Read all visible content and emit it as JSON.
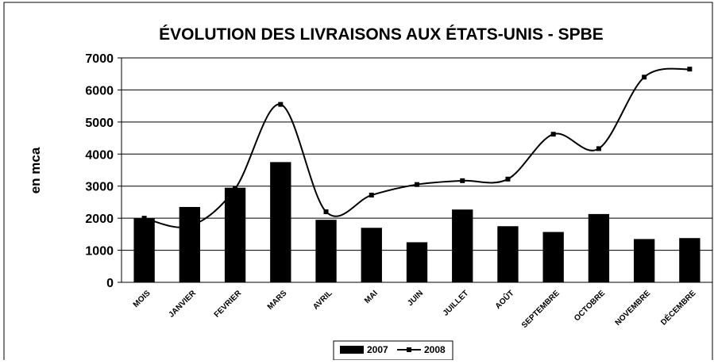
{
  "chart_data": {
    "type": "bar-line",
    "title": "ÉVOLUTION DES LIVRAISONS AUX ÉTATS-UNIS - SPBE",
    "y_label": "en mca",
    "categories": [
      "MOIS",
      "JANVIER",
      "FEVRIER",
      "MARS",
      "AVRIL",
      "MAI",
      "JUIN",
      "JUILLET",
      "AOÛT",
      "SEPTEMBRE",
      "OCTOBRE",
      "NOVEMBRE",
      "DÉCEMBRE"
    ],
    "series": [
      {
        "name": "2007",
        "type": "bar",
        "color": "#000000",
        "values": [
          2000,
          2350,
          2950,
          3750,
          1950,
          1700,
          1250,
          2270,
          1750,
          1570,
          2130,
          1350,
          1380
        ]
      },
      {
        "name": "2008",
        "type": "line",
        "color": "#000000",
        "values": [
          2000,
          1750,
          2920,
          5550,
          2200,
          2720,
          3050,
          3170,
          3220,
          4620,
          4170,
          6400,
          6650
        ]
      }
    ],
    "ylim": [
      0,
      7000
    ],
    "yticks": [
      0,
      1000,
      2000,
      3000,
      4000,
      5000,
      6000,
      7000
    ],
    "grid": true,
    "legend": "bottom"
  }
}
